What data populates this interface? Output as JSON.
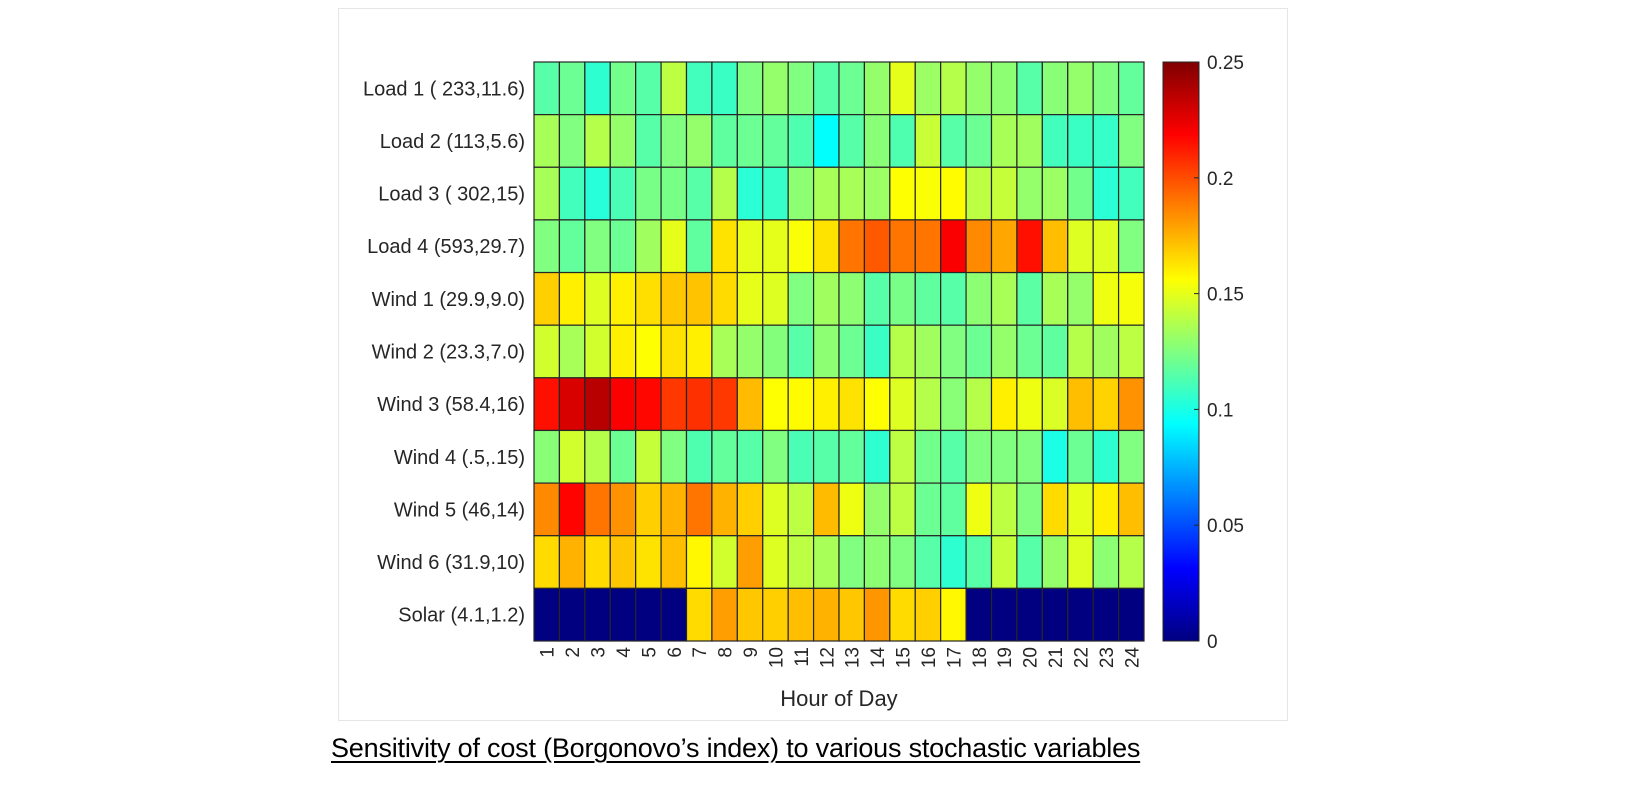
{
  "chart_data": {
    "type": "heatmap",
    "xlabel": "Hour of Day",
    "ylabel": "",
    "x_categories": [
      "1",
      "2",
      "3",
      "4",
      "5",
      "6",
      "7",
      "8",
      "9",
      "10",
      "11",
      "12",
      "13",
      "14",
      "15",
      "16",
      "17",
      "18",
      "19",
      "20",
      "21",
      "22",
      "23",
      "24"
    ],
    "y_categories": [
      "Load 1 ( 233,11.6)",
      "Load 2 (113,5.6)",
      "Load 3 ( 302,15)",
      "Load 4 (593,29.7)",
      "Wind 1 (29.9,9.0)",
      "Wind 2 (23.3,7.0)",
      "Wind 3 (58.4,16)",
      "Wind 4 (.5,.15)",
      "Wind 5 (46,14)",
      "Wind 6 (31.9,10)",
      "Solar (4.1,1.2)"
    ],
    "values": [
      [
        0.115,
        0.12,
        0.105,
        0.122,
        0.115,
        0.14,
        0.11,
        0.108,
        0.125,
        0.13,
        0.125,
        0.115,
        0.12,
        0.13,
        0.15,
        0.132,
        0.138,
        0.13,
        0.128,
        0.115,
        0.127,
        0.13,
        0.125,
        0.118
      ],
      [
        0.135,
        0.125,
        0.138,
        0.13,
        0.115,
        0.125,
        0.13,
        0.117,
        0.12,
        0.118,
        0.113,
        0.094,
        0.115,
        0.127,
        0.113,
        0.143,
        0.115,
        0.12,
        0.135,
        0.133,
        0.11,
        0.108,
        0.107,
        0.125
      ],
      [
        0.135,
        0.11,
        0.103,
        0.112,
        0.123,
        0.123,
        0.115,
        0.138,
        0.104,
        0.107,
        0.128,
        0.135,
        0.135,
        0.132,
        0.156,
        0.155,
        0.157,
        0.14,
        0.142,
        0.13,
        0.132,
        0.122,
        0.104,
        0.11
      ],
      [
        0.125,
        0.118,
        0.125,
        0.12,
        0.133,
        0.15,
        0.117,
        0.163,
        0.15,
        0.15,
        0.155,
        0.163,
        0.19,
        0.197,
        0.19,
        0.19,
        0.22,
        0.185,
        0.178,
        0.215,
        0.172,
        0.148,
        0.148,
        0.125
      ],
      [
        0.168,
        0.16,
        0.148,
        0.16,
        0.164,
        0.17,
        0.171,
        0.165,
        0.15,
        0.148,
        0.125,
        0.133,
        0.128,
        0.115,
        0.123,
        0.117,
        0.115,
        0.128,
        0.135,
        0.116,
        0.135,
        0.13,
        0.152,
        0.154
      ],
      [
        0.145,
        0.135,
        0.145,
        0.16,
        0.156,
        0.163,
        0.16,
        0.135,
        0.13,
        0.126,
        0.115,
        0.128,
        0.12,
        0.108,
        0.138,
        0.133,
        0.125,
        0.12,
        0.13,
        0.12,
        0.117,
        0.138,
        0.133,
        0.14
      ],
      [
        0.215,
        0.228,
        0.236,
        0.22,
        0.217,
        0.205,
        0.207,
        0.205,
        0.173,
        0.156,
        0.157,
        0.16,
        0.163,
        0.156,
        0.148,
        0.138,
        0.127,
        0.138,
        0.16,
        0.152,
        0.147,
        0.172,
        0.167,
        0.183
      ],
      [
        0.127,
        0.145,
        0.138,
        0.12,
        0.142,
        0.125,
        0.113,
        0.118,
        0.115,
        0.125,
        0.112,
        0.115,
        0.118,
        0.105,
        0.14,
        0.122,
        0.115,
        0.125,
        0.125,
        0.125,
        0.1,
        0.12,
        0.105,
        0.125
      ],
      [
        0.185,
        0.218,
        0.19,
        0.183,
        0.168,
        0.175,
        0.19,
        0.175,
        0.168,
        0.148,
        0.14,
        0.173,
        0.152,
        0.13,
        0.14,
        0.12,
        0.117,
        0.152,
        0.14,
        0.125,
        0.165,
        0.15,
        0.16,
        0.172
      ],
      [
        0.165,
        0.175,
        0.165,
        0.17,
        0.163,
        0.172,
        0.158,
        0.145,
        0.18,
        0.148,
        0.14,
        0.135,
        0.125,
        0.128,
        0.125,
        0.115,
        0.105,
        0.115,
        0.142,
        0.115,
        0.13,
        0.148,
        0.128,
        0.138
      ],
      [
        0,
        0,
        0,
        0,
        0,
        0,
        0.165,
        0.18,
        0.17,
        0.168,
        0.172,
        0.175,
        0.17,
        0.182,
        0.165,
        0.168,
        0.158,
        0,
        0,
        0,
        0,
        0,
        0,
        0
      ]
    ],
    "colormap": "jet",
    "clim": [
      0,
      0.25
    ],
    "colorbar": {
      "ticks": [
        0,
        0.05,
        0.1,
        0.15,
        0.2,
        0.25
      ],
      "tick_labels": [
        "0",
        "0.05",
        "0.1",
        "0.15",
        "0.2",
        "0.25"
      ],
      "placement": "right"
    },
    "grid": false
  },
  "caption": "Sensitivity of cost (Borgonovo’s index) to various stochastic variables"
}
